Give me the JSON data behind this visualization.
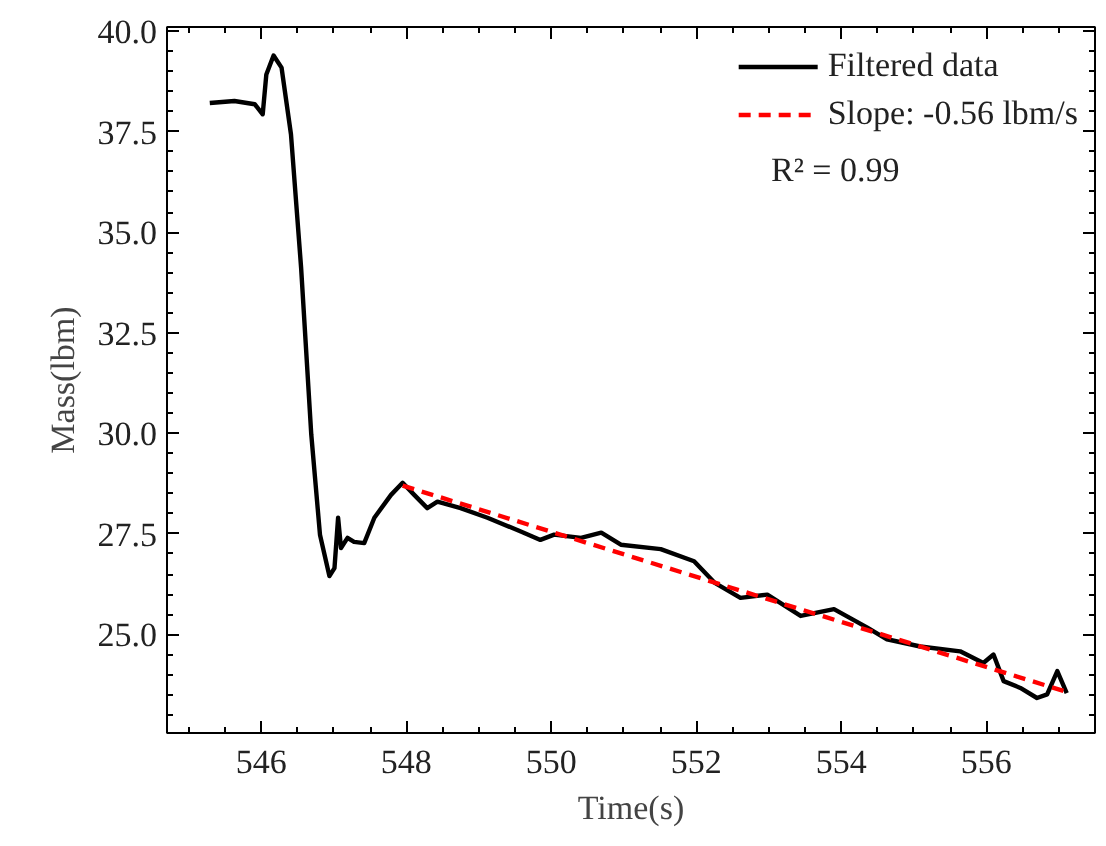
{
  "chart_data": {
    "type": "line",
    "xlabel": "Time(s)",
    "ylabel": "Mass(lbm)",
    "xlim": [
      544.7,
      557.5
    ],
    "ylim": [
      22.55,
      40.1
    ],
    "xticks": [
      546,
      548,
      550,
      552,
      554,
      556
    ],
    "yticks": [
      {
        "value": 25,
        "label": "25.0"
      },
      27.5,
      {
        "value": 30,
        "label": "30.0"
      },
      32.5,
      {
        "value": 35,
        "label": "35.0"
      },
      37.5,
      {
        "value": 40,
        "label": "40.0"
      }
    ],
    "grid": false,
    "legend": "top right",
    "marker": "none",
    "annotations": [
      "R² = 0.99"
    ],
    "series": [
      {
        "name": "Filtered data",
        "color": "#000000",
        "line_style": "solid",
        "x": [
          545.29,
          545.63,
          545.91,
          546.02,
          546.07,
          546.17,
          546.28,
          546.41,
          546.55,
          546.69,
          546.81,
          546.94,
          547.01,
          547.06,
          547.1,
          547.19,
          547.28,
          547.42,
          547.56,
          547.79,
          547.95,
          548.11,
          548.29,
          548.43,
          548.75,
          549.12,
          549.58,
          549.85,
          550.04,
          550.41,
          550.69,
          550.96,
          551.51,
          551.97,
          552.25,
          552.61,
          552.98,
          553.44,
          553.9,
          554.36,
          554.63,
          555.09,
          555.64,
          555.96,
          556.1,
          556.24,
          556.47,
          556.7,
          556.84,
          556.98,
          557.11
        ],
        "values": [
          38.21,
          38.26,
          38.18,
          37.93,
          38.92,
          39.39,
          39.09,
          37.43,
          34.11,
          29.97,
          27.48,
          26.45,
          26.65,
          27.9,
          27.15,
          27.4,
          27.3,
          27.27,
          27.9,
          28.47,
          28.77,
          28.47,
          28.14,
          28.3,
          28.14,
          27.9,
          27.56,
          27.35,
          27.48,
          27.4,
          27.53,
          27.23,
          27.12,
          26.82,
          26.29,
          25.91,
          25.99,
          25.46,
          25.63,
          25.17,
          24.88,
          24.7,
          24.58,
          24.29,
          24.5,
          23.84,
          23.67,
          23.42,
          23.51,
          24.09,
          23.54
        ]
      },
      {
        "name": "Slope: -0.56 lbm/s",
        "color": "#ff0000",
        "line_style": "dashed",
        "x": [
          547.95,
          557.11
        ],
        "values": [
          28.7,
          23.57
        ]
      }
    ]
  }
}
